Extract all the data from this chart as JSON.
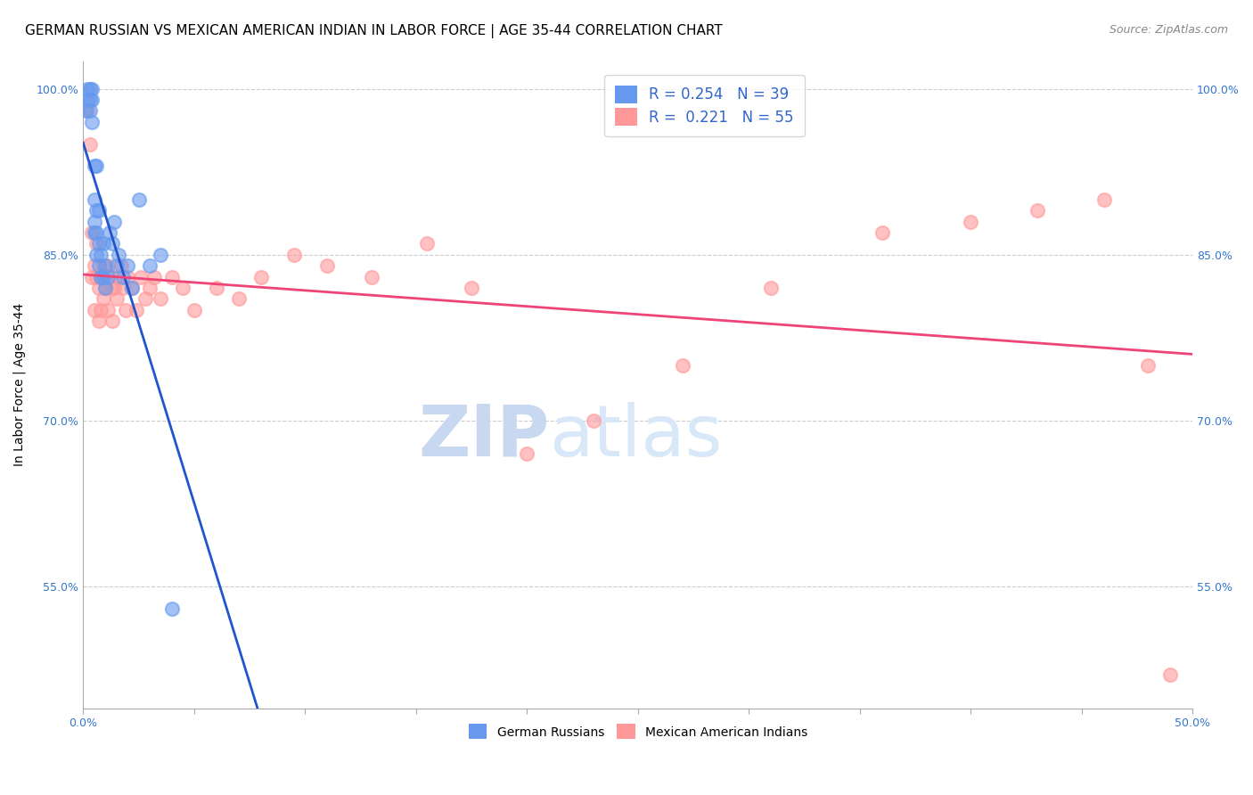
{
  "title": "GERMAN RUSSIAN VS MEXICAN AMERICAN INDIAN IN LABOR FORCE | AGE 35-44 CORRELATION CHART",
  "source": "Source: ZipAtlas.com",
  "ylabel": "In Labor Force | Age 35-44",
  "xlim": [
    0.0,
    0.5
  ],
  "ylim": [
    0.44,
    1.025
  ],
  "xticks": [
    0.0,
    0.05,
    0.1,
    0.15,
    0.2,
    0.25,
    0.3,
    0.35,
    0.4,
    0.45,
    0.5
  ],
  "yticks": [
    0.55,
    0.7,
    0.85,
    1.0
  ],
  "yticklabels": [
    "55.0%",
    "70.0%",
    "85.0%",
    "100.0%"
  ],
  "legend_R_blue": "0.254",
  "legend_N_blue": "39",
  "legend_R_pink": "0.221",
  "legend_N_pink": "55",
  "blue_color": "#6699ee",
  "pink_color": "#ff9999",
  "line_blue": "#2255cc",
  "line_pink": "#ee4477",
  "watermark_zip": "ZIP",
  "watermark_atlas": "atlas",
  "blue_scatter_x": [
    0.001,
    0.002,
    0.002,
    0.003,
    0.003,
    0.003,
    0.004,
    0.004,
    0.004,
    0.005,
    0.005,
    0.005,
    0.005,
    0.006,
    0.006,
    0.006,
    0.006,
    0.007,
    0.007,
    0.007,
    0.008,
    0.008,
    0.009,
    0.009,
    0.01,
    0.01,
    0.011,
    0.012,
    0.013,
    0.014,
    0.015,
    0.016,
    0.018,
    0.02,
    0.022,
    0.025,
    0.03,
    0.035,
    0.04
  ],
  "blue_scatter_y": [
    0.98,
    0.99,
    1.0,
    0.98,
    0.99,
    1.0,
    0.97,
    0.99,
    1.0,
    0.87,
    0.88,
    0.9,
    0.93,
    0.85,
    0.87,
    0.89,
    0.93,
    0.84,
    0.86,
    0.89,
    0.83,
    0.85,
    0.83,
    0.86,
    0.82,
    0.84,
    0.83,
    0.87,
    0.86,
    0.88,
    0.84,
    0.85,
    0.83,
    0.84,
    0.82,
    0.9,
    0.84,
    0.85,
    0.53
  ],
  "pink_scatter_x": [
    0.002,
    0.003,
    0.004,
    0.004,
    0.005,
    0.005,
    0.006,
    0.006,
    0.007,
    0.007,
    0.008,
    0.008,
    0.009,
    0.009,
    0.01,
    0.011,
    0.011,
    0.012,
    0.013,
    0.013,
    0.014,
    0.015,
    0.016,
    0.017,
    0.018,
    0.019,
    0.02,
    0.022,
    0.024,
    0.026,
    0.028,
    0.03,
    0.032,
    0.035,
    0.04,
    0.045,
    0.05,
    0.06,
    0.07,
    0.08,
    0.095,
    0.11,
    0.13,
    0.155,
    0.175,
    0.2,
    0.23,
    0.27,
    0.31,
    0.36,
    0.4,
    0.43,
    0.46,
    0.48,
    0.49
  ],
  "pink_scatter_y": [
    0.98,
    0.95,
    0.87,
    0.83,
    0.84,
    0.8,
    0.83,
    0.86,
    0.82,
    0.79,
    0.83,
    0.8,
    0.84,
    0.81,
    0.82,
    0.84,
    0.8,
    0.83,
    0.82,
    0.79,
    0.82,
    0.81,
    0.83,
    0.84,
    0.82,
    0.8,
    0.83,
    0.82,
    0.8,
    0.83,
    0.81,
    0.82,
    0.83,
    0.81,
    0.83,
    0.82,
    0.8,
    0.82,
    0.81,
    0.83,
    0.85,
    0.84,
    0.83,
    0.86,
    0.82,
    0.67,
    0.7,
    0.75,
    0.82,
    0.87,
    0.88,
    0.89,
    0.9,
    0.75,
    0.47
  ],
  "title_fontsize": 11,
  "axis_label_fontsize": 10,
  "tick_fontsize": 9,
  "source_fontsize": 9
}
